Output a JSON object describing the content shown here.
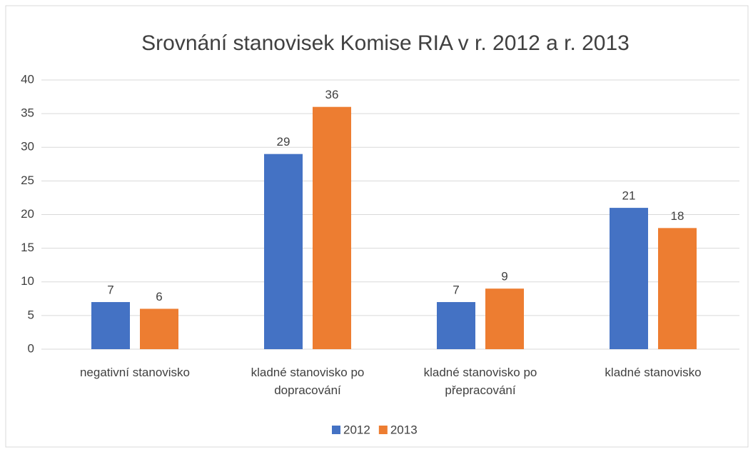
{
  "chart_data": {
    "type": "bar",
    "title": "Srovnání stanovisek Komise RIA v r. 2012 a r. 2013",
    "categories": [
      "negativní stanovisko",
      "kladné stanovisko po dopracování",
      "kladné stanovisko po přepracování",
      "kladné stanovisko"
    ],
    "series": [
      {
        "name": "2012",
        "color": "#4472c4",
        "values": [
          7,
          29,
          7,
          21
        ]
      },
      {
        "name": "2013",
        "color": "#ed7d31",
        "values": [
          6,
          36,
          9,
          18
        ]
      }
    ],
    "ylim": [
      0,
      40
    ],
    "yticks": [
      0,
      5,
      10,
      15,
      20,
      25,
      30,
      35,
      40
    ],
    "grid": true,
    "legend": "bottom"
  }
}
